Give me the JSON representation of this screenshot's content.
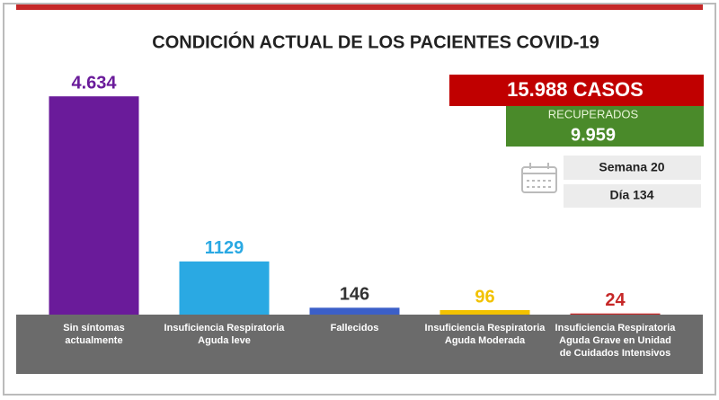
{
  "chart_data": {
    "type": "bar",
    "title": "CONDICIÓN ACTUAL DE LOS PACIENTES COVID-19",
    "categories": [
      "Sin síntomas actualmente",
      "Insuficiencia Respiratoria Aguda leve",
      "Fallecidos",
      "Insuficiencia Respiratoria Aguda Moderada",
      "Insuficiencia Respiratoria Aguda Grave en Unidad de Cuidados Intensivos"
    ],
    "values": [
      4634,
      1129,
      146,
      96,
      24
    ],
    "value_labels": [
      "4.634",
      "1129",
      "146",
      "96",
      "24"
    ],
    "colors": [
      "#6a1b9a",
      "#2aa9e3",
      "#3b5fc8",
      "#f2c200",
      "#c62828"
    ],
    "label_colors": [
      "#6a1b9a",
      "#2aa9e3",
      "#333333",
      "#f2c200",
      "#c62828"
    ],
    "ylim": [
      0,
      5000
    ],
    "annotations": {
      "total": "15.988 CASOS",
      "recovered_label": "RECUPERADOS",
      "recovered": "9.959",
      "week": "Semana 20",
      "day": "Día 134"
    }
  }
}
